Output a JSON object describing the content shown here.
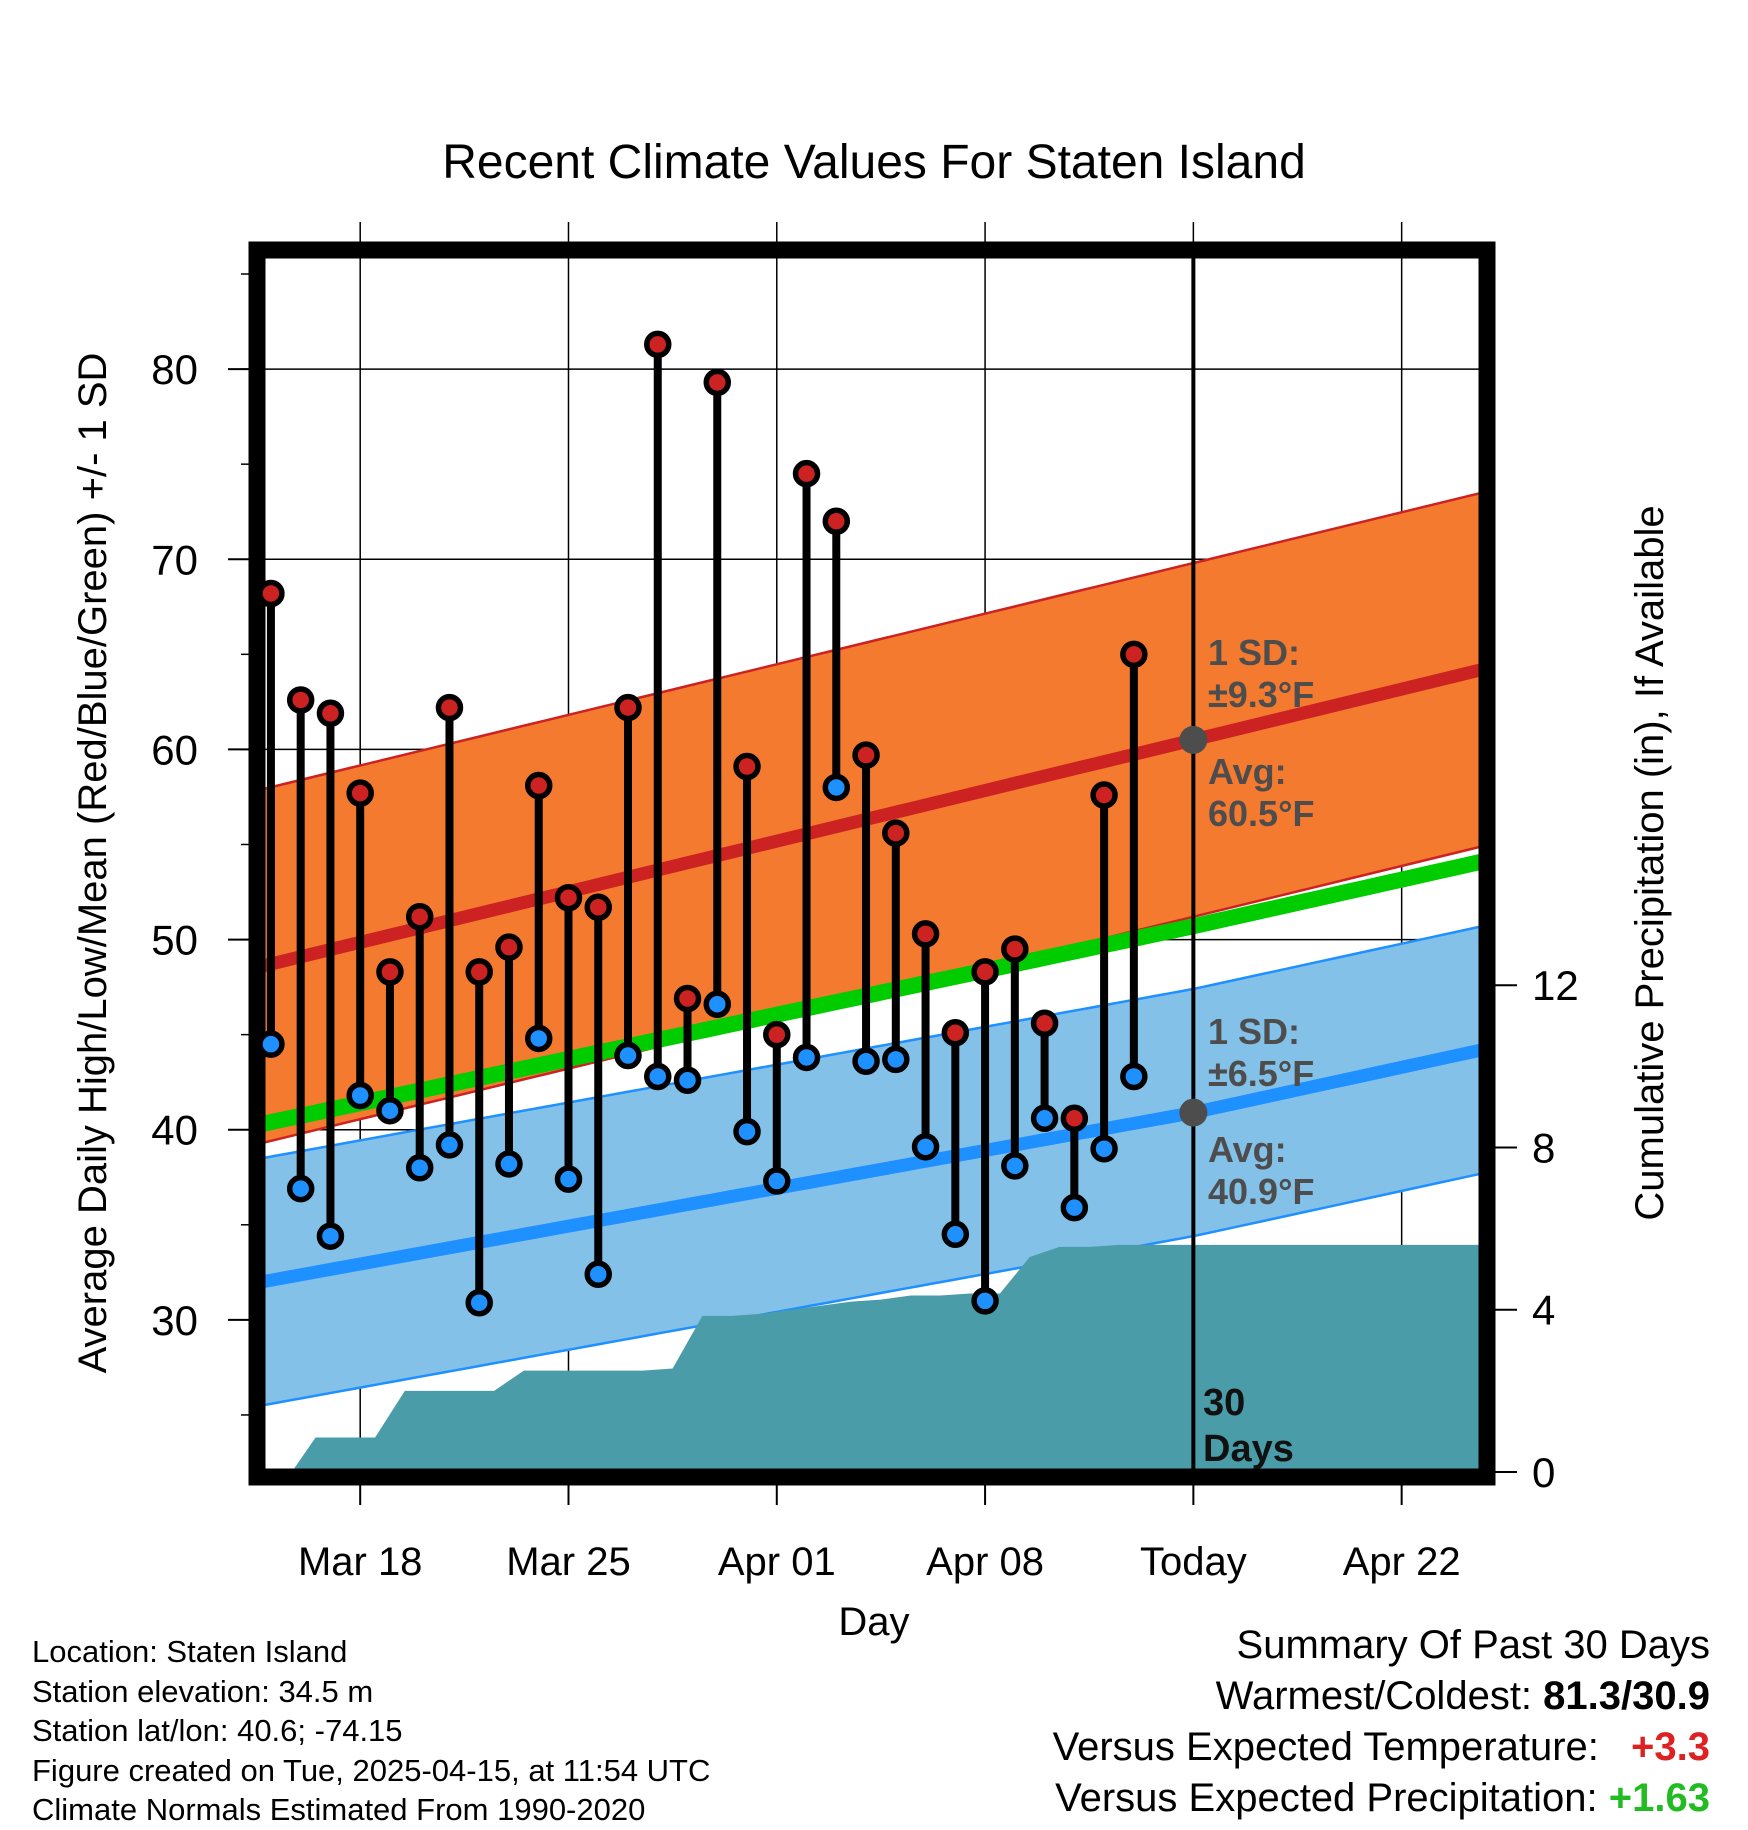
{
  "chart_data": {
    "type": "climate-range",
    "title": "Recent Climate Values For Staten Island",
    "xlabel": "Day",
    "ylabel": "Average Daily High/Low/Mean (Red/Blue/Green) +/- 1 SD",
    "y2label": "Cumulative Precipitation (in), If Available",
    "ylim": [
      22,
      86
    ],
    "y2lim": [
      0,
      30
    ],
    "yticks": [
      "30",
      "40",
      "50",
      "60",
      "70",
      "80"
    ],
    "y2ticks": [
      "0",
      "4",
      "8",
      "12"
    ],
    "xlim": [
      -0.3,
      40.7
    ],
    "xticks": [
      {
        "day": 3,
        "label": "Mar 18"
      },
      {
        "day": 10,
        "label": "Mar 25"
      },
      {
        "day": 17,
        "label": "Apr 01"
      },
      {
        "day": 24,
        "label": "Apr 08"
      },
      {
        "day": 31,
        "label": "Today"
      },
      {
        "day": 38,
        "label": "Apr 22"
      }
    ],
    "today_day": 31,
    "today_label": "30 Days",
    "observed": {
      "days": [
        0,
        1,
        2,
        3,
        4,
        5,
        6,
        7,
        8,
        9,
        10,
        11,
        12,
        13,
        14,
        15,
        16,
        17,
        18,
        19,
        20,
        21,
        22,
        23,
        24,
        25,
        26,
        27,
        28,
        29,
        30
      ],
      "high": [
        68.2,
        62.6,
        61.9,
        57.7,
        48.3,
        51.2,
        62.2,
        48.3,
        49.6,
        58.1,
        52.2,
        51.7,
        62.2,
        81.3,
        46.9,
        79.3,
        59.1,
        45.0,
        74.5,
        72.0,
        59.7,
        55.6,
        50.3,
        45.1,
        48.3,
        49.5,
        45.6,
        40.6,
        57.6,
        65.0,
        null
      ],
      "low": [
        44.5,
        36.9,
        34.4,
        41.8,
        41.0,
        38.0,
        39.2,
        30.9,
        38.2,
        44.8,
        37.4,
        32.4,
        43.9,
        42.8,
        42.6,
        46.6,
        39.9,
        37.3,
        43.8,
        58.0,
        43.6,
        43.7,
        39.1,
        34.5,
        31.0,
        38.1,
        40.6,
        35.9,
        39.0,
        42.8,
        null
      ]
    },
    "normals": {
      "days": [
        -0.3,
        31,
        40.7
      ],
      "high_avg": [
        48.6,
        60.5,
        64.2
      ],
      "high_sd": 9.3,
      "low_avg": [
        32.0,
        40.9,
        44.2
      ],
      "low_sd": 6.5,
      "mean_avg": [
        40.3,
        50.7,
        54.1
      ]
    },
    "precip": {
      "days": [
        0.7,
        1.5,
        2.5,
        3.5,
        4.5,
        5.5,
        6.5,
        7.5,
        8.5,
        9.5,
        10.5,
        11.5,
        12.5,
        13.5,
        14.5,
        15.5,
        16.5,
        17.5,
        18.5,
        19.5,
        20.5,
        21.5,
        22.5,
        23.5,
        24.5,
        25.5,
        26.5,
        27.5,
        28.5,
        29.5,
        30.5,
        31,
        40.7
      ],
      "cum": [
        0,
        0.85,
        0.85,
        0.85,
        2.0,
        2.0,
        2.0,
        2.0,
        2.5,
        2.5,
        2.5,
        2.5,
        2.5,
        2.55,
        3.85,
        3.85,
        3.9,
        4.0,
        4.1,
        4.2,
        4.25,
        4.35,
        4.35,
        4.4,
        4.4,
        5.3,
        5.55,
        5.55,
        5.6,
        5.6,
        5.6,
        5.6,
        5.6
      ]
    },
    "annotations": {
      "high_sd_label": "1 SD:",
      "high_sd_value": "±9.3°F",
      "high_avg_label": "Avg:",
      "high_avg_value": "60.5°F",
      "low_sd_label": "1 SD:",
      "low_sd_value": "±6.5°F",
      "low_avg_label": "Avg:",
      "low_avg_value": "40.9°F"
    },
    "colors": {
      "high_band": "#f47a30",
      "high_line": "#cc2222",
      "low_band": "#84c1e8",
      "low_line": "#1e90ff",
      "mean_line": "#00cc00",
      "precip": "#4a9ca8",
      "high_dot": "#cc2222",
      "low_dot": "#1e90ff",
      "annotation": "#4d4d4d"
    }
  },
  "info": {
    "location": "Location: Staten Island",
    "elevation": "Station elevation: 34.5 m",
    "latlon": "Station lat/lon: 40.6; -74.15",
    "created": "Figure created on Tue, 2025-04-15, at 11:54 UTC",
    "normals": "Climate Normals Estimated From 1990-2020"
  },
  "summary": {
    "title": "Summary Of Past 30 Days",
    "warmest_label": "Warmest/Coldest:",
    "warmest_value": "81.3/30.9",
    "temp_label": "Versus Expected Temperature:",
    "temp_value": "+3.3",
    "temp_color": "#dd2222",
    "precip_label": "Versus Expected Precipitation:",
    "precip_value": "+1.63",
    "precip_color": "#22bb22"
  }
}
